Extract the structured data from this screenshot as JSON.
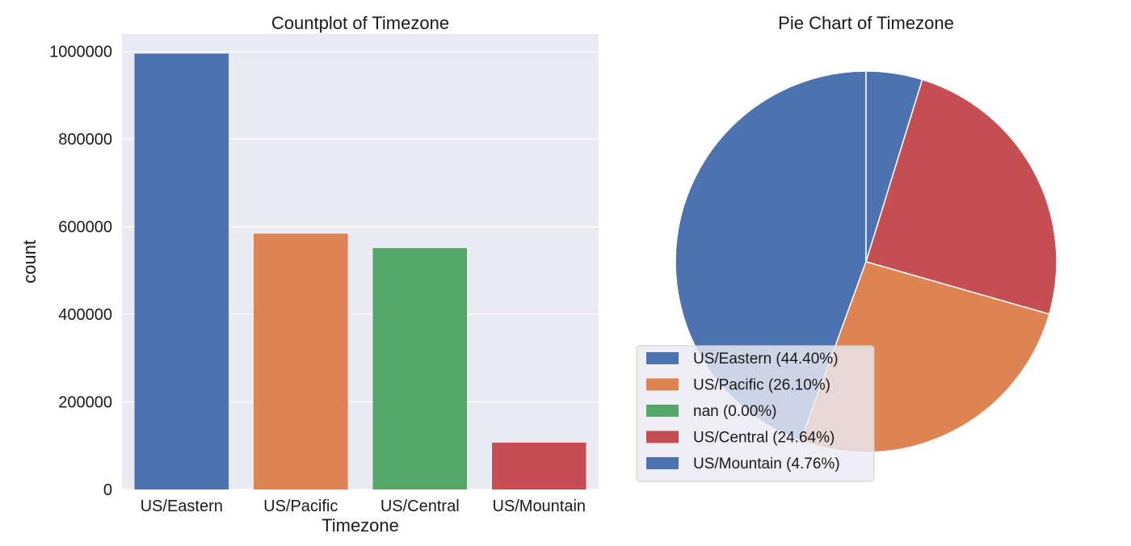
{
  "chart_data": [
    {
      "type": "bar",
      "title": "Countplot of Timezone",
      "xlabel": "Timezone",
      "ylabel": "count",
      "categories": [
        "US/Eastern",
        "US/Pacific",
        "US/Central",
        "US/Mountain"
      ],
      "values": [
        995000,
        584000,
        551000,
        107000
      ],
      "colors": [
        "#4c72b0",
        "#dd8452",
        "#55a868",
        "#c44e52"
      ],
      "ylim": [
        0,
        1000000
      ],
      "yticks": [
        0,
        200000,
        400000,
        600000,
        800000,
        1000000
      ],
      "ytick_labels": [
        "0",
        "200000",
        "400000",
        "600000",
        "800000",
        "1000000"
      ],
      "grid": true,
      "background": "#eaeaf2"
    },
    {
      "type": "pie",
      "title": "Pie Chart of Timezone",
      "startangle": 90,
      "direction": "counterclockwise",
      "slices": [
        {
          "label": "US/Eastern (44.40%)",
          "value": 44.4,
          "color": "#4c72b0"
        },
        {
          "label": "US/Pacific (26.10%)",
          "value": 26.1,
          "color": "#dd8452"
        },
        {
          "label": "nan (0.00%)",
          "value": 0.0,
          "color": "#55a868"
        },
        {
          "label": "US/Central (24.64%)",
          "value": 24.64,
          "color": "#c44e52"
        },
        {
          "label": "US/Mountain (4.76%)",
          "value": 4.76,
          "color": "#4c72b0"
        }
      ],
      "legend": "lower-left"
    }
  ]
}
